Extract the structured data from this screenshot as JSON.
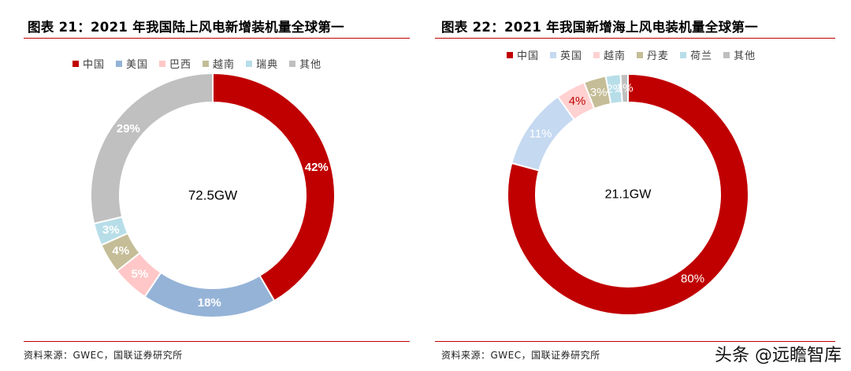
{
  "chart_data": [
    {
      "type": "pie",
      "title": "图表 21：2021 年我国陆上风电新增装机量全球第一",
      "center_label": "72.5GW",
      "categories": [
        "中国",
        "美国",
        "巴西",
        "越南",
        "瑞典",
        "其他"
      ],
      "values": [
        42,
        18,
        5,
        4,
        3,
        29
      ],
      "labels": [
        "42%",
        "18%",
        "5%",
        "4%",
        "3%",
        "29%"
      ],
      "colors": [
        "#c00000",
        "#95b3d7",
        "#ffc7c7",
        "#c4bd97",
        "#b7dee8",
        "#c0c0c0"
      ],
      "label_colors": [
        "#ffffff",
        "#ffffff",
        "#ffffff",
        "#ffffff",
        "#ffffff",
        "#ffffff"
      ],
      "source": "资料来源：GWEC，国联证券研究所"
    },
    {
      "type": "pie",
      "title": "图表 22：2021 年我国新增海上风电装机量全球第一",
      "center_label": "21.1GW",
      "categories": [
        "中国",
        "英国",
        "越南",
        "丹麦",
        "荷兰",
        "其他"
      ],
      "values": [
        80,
        11,
        4,
        3,
        2,
        1
      ],
      "labels": [
        "80%",
        "11%",
        "4%",
        "3%",
        "2%",
        "1%"
      ],
      "colors": [
        "#c00000",
        "#c5d9f1",
        "#ffd1d1",
        "#c4bd97",
        "#b7dee8",
        "#bfbfbf"
      ],
      "label_colors": [
        "#ffffff",
        "#ffffff",
        "#c00000",
        "#ffffff",
        "#ffffff",
        "#ffffff"
      ],
      "source": "资料来源：GWEC，国联证券研究所"
    }
  ],
  "watermark": "头条 @远瞻智库"
}
